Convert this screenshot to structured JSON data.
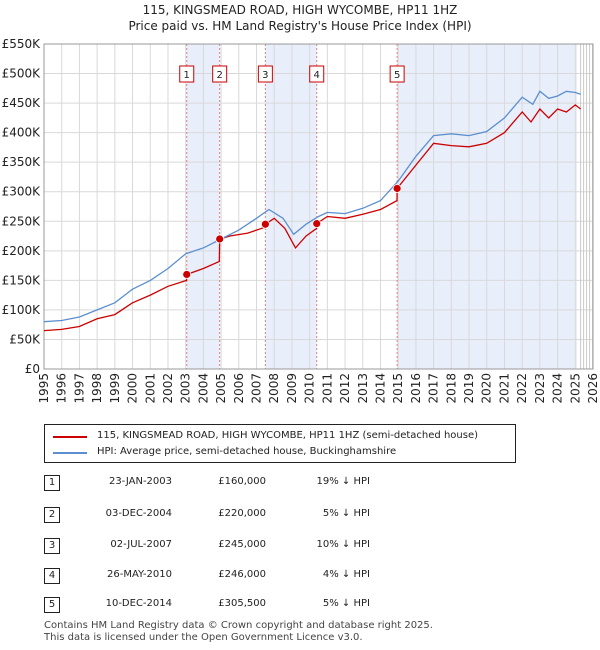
{
  "title": "115, KINGSMEAD ROAD, HIGH WYCOMBE, HP11 1HZ",
  "subtitle": "Price paid vs. HM Land Registry's House Price Index (HPI)",
  "colors": {
    "property": "#cc0000",
    "hpi": "#5b8fd0",
    "shade": "#e8eefa",
    "marker_line": "#e08080"
  },
  "legend": {
    "property_label": "115, KINGSMEAD ROAD, HIGH WYCOMBE, HP11 1HZ (semi-detached house)",
    "hpi_label": "HPI: Average price, semi-detached house, Buckinghamshire"
  },
  "transactions": [
    {
      "num": "1",
      "date": "23-JAN-2003",
      "price": "£160,000",
      "hpi": "19% ↓ HPI"
    },
    {
      "num": "2",
      "date": "03-DEC-2004",
      "price": "£220,000",
      "hpi": "5% ↓ HPI"
    },
    {
      "num": "3",
      "date": "02-JUL-2007",
      "price": "£245,000",
      "hpi": "10% ↓ HPI"
    },
    {
      "num": "4",
      "date": "26-MAY-2010",
      "price": "£246,000",
      "hpi": "4% ↓ HPI"
    },
    {
      "num": "5",
      "date": "10-DEC-2014",
      "price": "£305,500",
      "hpi": "5% ↓ HPI"
    }
  ],
  "footer": {
    "line1": "Contains HM Land Registry data © Crown copyright and database right 2025.",
    "line2": "This data is licensed under the Open Government Licence v3.0."
  },
  "chart_data": {
    "type": "line",
    "x_range": [
      1995,
      2026
    ],
    "ylim": [
      0,
      550000
    ],
    "y_ticks": [
      {
        "value": 0,
        "label": "£0"
      },
      {
        "value": 50000,
        "label": "£50K"
      },
      {
        "value": 100000,
        "label": "£100K"
      },
      {
        "value": 150000,
        "label": "£150K"
      },
      {
        "value": 200000,
        "label": "£200K"
      },
      {
        "value": 250000,
        "label": "£250K"
      },
      {
        "value": 300000,
        "label": "£300K"
      },
      {
        "value": 350000,
        "label": "£350K"
      },
      {
        "value": 400000,
        "label": "£400K"
      },
      {
        "value": 450000,
        "label": "£450K"
      },
      {
        "value": 500000,
        "label": "£500K"
      },
      {
        "value": 550000,
        "label": "£550K"
      }
    ],
    "x_ticks": [
      "1995",
      "1996",
      "1997",
      "1998",
      "1999",
      "2000",
      "2001",
      "2002",
      "2003",
      "2004",
      "2005",
      "2006",
      "2007",
      "2008",
      "2009",
      "2010",
      "2011",
      "2012",
      "2013",
      "2014",
      "2015",
      "2016",
      "2017",
      "2018",
      "2019",
      "2020",
      "2021",
      "2022",
      "2023",
      "2024",
      "2025",
      "2026"
    ],
    "shaded_ranges": [
      [
        2003.06,
        2004.92
      ],
      [
        2007.5,
        2010.4
      ],
      [
        2014.94,
        2025.1
      ]
    ],
    "forecast_start": 2025.3,
    "sales": [
      {
        "label": "1",
        "x": 2003.06,
        "y": 160000
      },
      {
        "label": "2",
        "x": 2004.92,
        "y": 220000
      },
      {
        "label": "3",
        "x": 2007.5,
        "y": 245000
      },
      {
        "label": "4",
        "x": 2010.4,
        "y": 246000
      },
      {
        "label": "5",
        "x": 2014.94,
        "y": 305500
      }
    ],
    "series": [
      {
        "name": "115, KINGSMEAD ROAD, HIGH WYCOMBE, HP11 1HZ (semi-detached house)",
        "points": [
          [
            1995,
            65000
          ],
          [
            1996,
            67000
          ],
          [
            1997,
            72000
          ],
          [
            1998,
            85000
          ],
          [
            1999,
            92000
          ],
          [
            2000,
            112000
          ],
          [
            2001,
            125000
          ],
          [
            2002,
            140000
          ],
          [
            2003.05,
            150000
          ],
          [
            2003.06,
            160000
          ],
          [
            2004,
            170000
          ],
          [
            2004.9,
            182000
          ],
          [
            2004.92,
            220000
          ],
          [
            2005.5,
            225000
          ],
          [
            2006.5,
            230000
          ],
          [
            2007.49,
            240000
          ],
          [
            2007.5,
            245000
          ],
          [
            2008,
            255000
          ],
          [
            2008.6,
            238000
          ],
          [
            2009.2,
            205000
          ],
          [
            2009.8,
            225000
          ],
          [
            2010.39,
            238000
          ],
          [
            2010.4,
            246000
          ],
          [
            2011,
            258000
          ],
          [
            2012,
            255000
          ],
          [
            2013,
            262000
          ],
          [
            2014,
            270000
          ],
          [
            2014.93,
            285000
          ],
          [
            2014.94,
            305500
          ],
          [
            2016,
            345000
          ],
          [
            2017,
            382000
          ],
          [
            2018,
            378000
          ],
          [
            2019,
            376000
          ],
          [
            2020,
            382000
          ],
          [
            2021,
            400000
          ],
          [
            2022,
            435000
          ],
          [
            2022.5,
            418000
          ],
          [
            2023,
            440000
          ],
          [
            2023.5,
            425000
          ],
          [
            2024,
            440000
          ],
          [
            2024.5,
            435000
          ],
          [
            2025,
            447000
          ],
          [
            2025.3,
            440000
          ]
        ]
      },
      {
        "name": "HPI: Average price, semi-detached house, Buckinghamshire",
        "points": [
          [
            1995,
            80000
          ],
          [
            1996,
            82000
          ],
          [
            1997,
            88000
          ],
          [
            1998,
            100000
          ],
          [
            1999,
            112000
          ],
          [
            2000,
            135000
          ],
          [
            2001,
            150000
          ],
          [
            2002,
            170000
          ],
          [
            2003,
            195000
          ],
          [
            2004,
            205000
          ],
          [
            2005,
            220000
          ],
          [
            2006,
            235000
          ],
          [
            2007,
            255000
          ],
          [
            2007.7,
            270000
          ],
          [
            2008.5,
            255000
          ],
          [
            2009.1,
            228000
          ],
          [
            2009.8,
            245000
          ],
          [
            2010.5,
            258000
          ],
          [
            2011,
            265000
          ],
          [
            2012,
            263000
          ],
          [
            2013,
            272000
          ],
          [
            2014,
            285000
          ],
          [
            2015,
            318000
          ],
          [
            2016,
            360000
          ],
          [
            2017,
            395000
          ],
          [
            2018,
            398000
          ],
          [
            2019,
            395000
          ],
          [
            2020,
            402000
          ],
          [
            2021,
            425000
          ],
          [
            2022,
            460000
          ],
          [
            2022.6,
            448000
          ],
          [
            2023,
            470000
          ],
          [
            2023.5,
            458000
          ],
          [
            2024,
            462000
          ],
          [
            2024.5,
            470000
          ],
          [
            2025,
            468000
          ],
          [
            2025.3,
            465000
          ]
        ]
      }
    ]
  }
}
